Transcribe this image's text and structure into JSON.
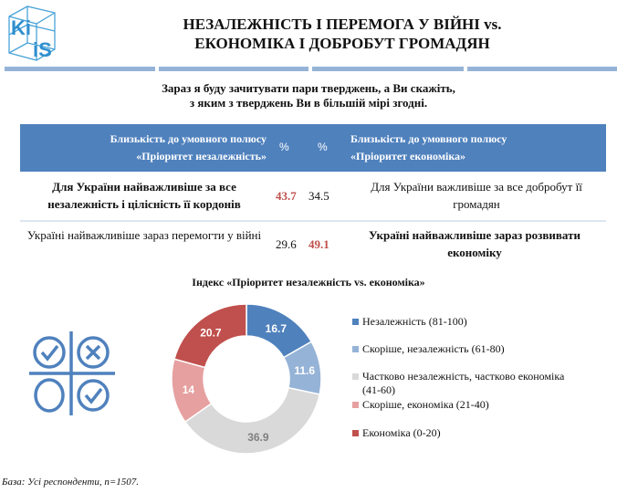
{
  "logo": {
    "text": "KIIS"
  },
  "header": {
    "title_line1": "НЕЗАЛЕЖНІСТЬ І ПЕРЕМОГА У ВІЙНІ vs.",
    "title_line2": "ЕКОНОМІКА І ДОБРОБУТ ГРОМАДЯН"
  },
  "question": {
    "line1": "Зараз я буду зачитувати пари тверджень, а Ви скажіть,",
    "line2": "з яким з тверджень Ви в більшій мірі згодні."
  },
  "table": {
    "header": {
      "left_line1": "Близькість до умовного полюсу",
      "left_line2": "«Пріоритет незалежність»",
      "pct1": "%",
      "pct2": "%",
      "right_line1": "Близькість до умовного полюсу",
      "right_line2": "«Пріоритет економіка»"
    },
    "rows": [
      {
        "left": "Для України найважливіше за все незалежність і цілісність її кордонів",
        "v1": "43.7",
        "v2": "34.5",
        "right": "Для України важливіше за все добробут її громадян"
      },
      {
        "left": "Україні найважливіше зараз перемогти у війні",
        "v1": "29.6",
        "v2": "49.1",
        "right": "Україні найважливіше зараз розвивати економіку"
      }
    ]
  },
  "chart_data": {
    "type": "pie",
    "donut": true,
    "title": "Індекс «Пріоритет незалежність vs. економіка»",
    "categories": [
      "Незалежність (81-100)",
      "Скоріше, незалежність (61-80)",
      "Частково незалежність, частково економіка (41-60)",
      "Скоріше, економіка (21-40)",
      "Економіка (0-20)"
    ],
    "values": [
      16.7,
      11.6,
      36.9,
      14,
      20.7
    ],
    "labels": [
      "16.7",
      "11.6",
      "36.9",
      "14",
      "20.7"
    ],
    "colors": [
      "#4f81bd",
      "#95b3d7",
      "#d9d9d9",
      "#e6a0a0",
      "#c0504d"
    ],
    "label_colors": [
      "#ffffff",
      "#ffffff",
      "#7f7f7f",
      "#ffffff",
      "#ffffff"
    ],
    "legend_position": "right"
  },
  "icon": {
    "name": "tic-tac-toe-icon",
    "color": "#4f81bd"
  },
  "footer": "База: Усі респонденти, n=1507."
}
